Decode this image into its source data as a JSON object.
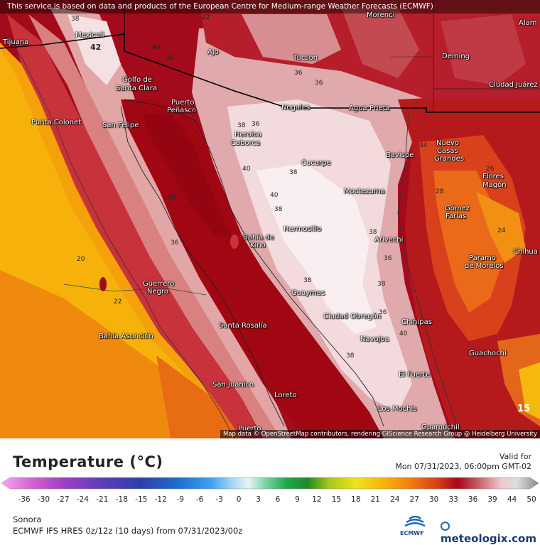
{
  "notice": "This service is based on data and products of the European Centre for Medium-range Weather Forecasts (ECMWF)",
  "map_credit": "Map data © OpenStreetMap contributors, rendering GIScience Research Group @ Heidelberg University",
  "legend": {
    "title": "Temperature (°C)",
    "valid_label": "Valid for",
    "valid_time": "Mon 07/31/2023, 06:00pm GMT-02",
    "ticks": [
      "-36",
      "-30",
      "-27",
      "-24",
      "-21",
      "-18",
      "-15",
      "-12",
      "-9",
      "-6",
      "-3",
      "0",
      "3",
      "6",
      "9",
      "12",
      "15",
      "18",
      "21",
      "24",
      "27",
      "30",
      "33",
      "36",
      "39",
      "44",
      "50"
    ]
  },
  "footer": {
    "region": "Sonora",
    "model": "ECMWF IFS HRES 0z/12z (10 days) from 07/31/2023/00z",
    "ecmwf_label": "ECMWF",
    "brand": "meteologix.com"
  },
  "cities": [
    {
      "name": "Tijuana"
    },
    {
      "name": "Mexicali"
    },
    {
      "name": "Golfo de"
    },
    {
      "name": "Santa Clara"
    },
    {
      "name": "Tucson"
    },
    {
      "name": "Ajo"
    },
    {
      "name": "Deming"
    },
    {
      "name": "Ciudad Juárez"
    },
    {
      "name": "Alam"
    },
    {
      "name": "Morenci"
    },
    {
      "name": "Puerto"
    },
    {
      "name": "Peñasco"
    },
    {
      "name": "Nogales"
    },
    {
      "name": "Agua Prieta"
    },
    {
      "name": "Punta Colonet"
    },
    {
      "name": "San Felipe"
    },
    {
      "name": "Heroica"
    },
    {
      "name": "Caborca"
    },
    {
      "name": "Nuevo"
    },
    {
      "name": "Casas"
    },
    {
      "name": "Grandes"
    },
    {
      "name": "Bavispe"
    },
    {
      "name": "Cucurpe"
    },
    {
      "name": "Flores"
    },
    {
      "name": "Magón"
    },
    {
      "name": "Moctezuma"
    },
    {
      "name": "Gómez"
    },
    {
      "name": "Farías"
    },
    {
      "name": "Hermosillo"
    },
    {
      "name": "Bahía de"
    },
    {
      "name": "Kino"
    },
    {
      "name": "Arivechi"
    },
    {
      "name": "Chihua"
    },
    {
      "name": "Páramo"
    },
    {
      "name": "de Morelos"
    },
    {
      "name": "Guerrero"
    },
    {
      "name": "Negro"
    },
    {
      "name": "Guaymas"
    },
    {
      "name": "Ciudad Obregón"
    },
    {
      "name": "Chínipas"
    },
    {
      "name": "Bahía Asunción"
    },
    {
      "name": "Santa Rosalía"
    },
    {
      "name": "Navojoa"
    },
    {
      "name": "Guachochi"
    },
    {
      "name": "El Fuerte"
    },
    {
      "name": "San Juanico"
    },
    {
      "name": "Loreto"
    },
    {
      "name": "Los Mochis"
    },
    {
      "name": "Guamúchil"
    },
    {
      "name": "Puerto"
    }
  ],
  "temps": [
    "42",
    "40",
    "38",
    "38",
    "36",
    "36",
    "36",
    "38",
    "36",
    "40",
    "38",
    "36",
    "38",
    "36",
    "38",
    "36",
    "38",
    "20",
    "22",
    "40",
    "38",
    "36",
    "38",
    "40",
    "34",
    "28",
    "24",
    "26",
    "22",
    "15"
  ]
}
